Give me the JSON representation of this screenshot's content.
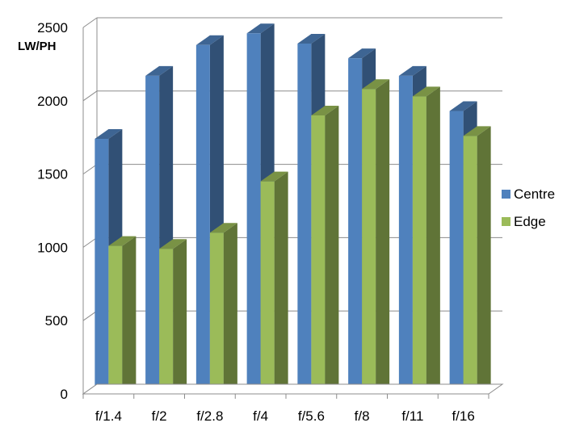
{
  "chart_data": {
    "type": "bar",
    "title": "",
    "xlabel": "",
    "ylabel": "LW/PH",
    "categories": [
      "f/1.4",
      "f/2",
      "f/2.8",
      "f/4",
      "f/5.6",
      "f/8",
      "f/11",
      "f/16"
    ],
    "series": [
      {
        "name": "Centre",
        "color": "#4F81BD",
        "values": [
          1740,
          2170,
          2380,
          2460,
          2390,
          2290,
          2170,
          1930
        ]
      },
      {
        "name": "Edge",
        "color": "#9BBB59",
        "values": [
          1010,
          990,
          1100,
          1450,
          1900,
          2080,
          2030,
          1760
        ]
      }
    ],
    "ylim": [
      0,
      2500
    ],
    "yticks": [
      0,
      500,
      1000,
      1500,
      2000,
      2500
    ],
    "grid": true,
    "legend_position": "right",
    "render_style": "3d-clustered-column"
  }
}
